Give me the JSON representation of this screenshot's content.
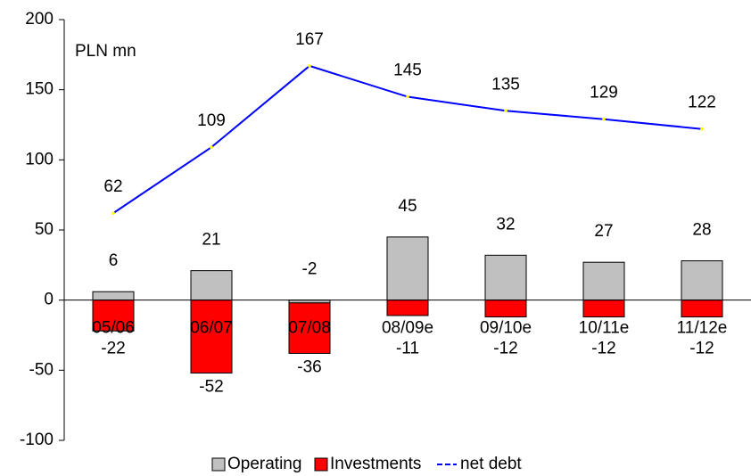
{
  "chart_data": {
    "type": "bar",
    "annotation": "PLN mn",
    "categories": [
      "05/06",
      "06/07",
      "07/08",
      "08/09e",
      "09/10e",
      "10/11e",
      "11/12e"
    ],
    "series": [
      {
        "name": "Operating",
        "type": "bar",
        "color": "#c0c0c0",
        "values": [
          6,
          21,
          -2,
          45,
          32,
          27,
          28
        ]
      },
      {
        "name": "Investments",
        "type": "bar",
        "color": "#ff0000",
        "values": [
          -22,
          -52,
          -36,
          -11,
          -12,
          -12,
          -12
        ]
      },
      {
        "name": "net debt",
        "type": "line",
        "color": "#0000ff",
        "values": [
          62,
          109,
          167,
          145,
          135,
          129,
          122
        ]
      }
    ],
    "ylim": [
      -100,
      200
    ],
    "yticks": [
      -100,
      -50,
      0,
      50,
      100,
      150,
      200
    ],
    "legend": "bottom"
  }
}
